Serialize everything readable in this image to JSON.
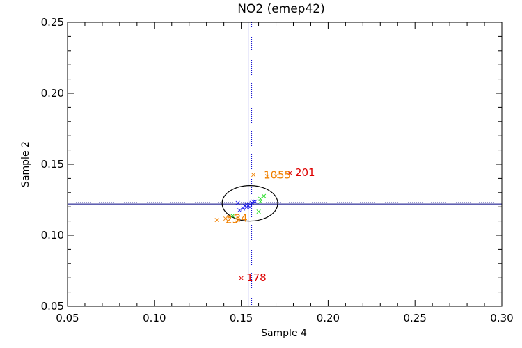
{
  "chart_data": {
    "type": "scatter",
    "title": "NO2 (emep42)",
    "xlabel": "Sample 4",
    "ylabel": "Sample 2",
    "xlim": [
      0.05,
      0.3
    ],
    "ylim": [
      0.05,
      0.25
    ],
    "x_ticks": [
      "0.05",
      "0.10",
      "0.15",
      "0.20",
      "0.25",
      "0.30"
    ],
    "y_ticks": [
      "0.05",
      "0.10",
      "0.15",
      "0.20",
      "0.25"
    ],
    "grid": false,
    "marker": "x",
    "colors": {
      "blue": "#1a1aee",
      "green": "#22dd22",
      "orange": "#f08000",
      "red": "#dd0000",
      "reference_line": "#000080",
      "mean_line": "#0000cc"
    },
    "reference_lines": {
      "x_solid": 0.154,
      "x_dotted": 0.156,
      "y_solid": 0.122,
      "y_dotted": 0.123
    },
    "ellipse": {
      "cx": 0.155,
      "cy": 0.1225,
      "rx": 0.016,
      "ry": 0.0125
    },
    "series": [
      {
        "color": "blue",
        "points": [
          [
            0.148,
            0.123
          ],
          [
            0.149,
            0.118
          ],
          [
            0.151,
            0.119
          ],
          [
            0.152,
            0.121
          ],
          [
            0.153,
            0.122
          ],
          [
            0.154,
            0.121
          ],
          [
            0.155,
            0.122
          ],
          [
            0.156,
            0.123
          ],
          [
            0.157,
            0.124
          ],
          [
            0.158,
            0.124
          ],
          [
            0.155,
            0.12
          ],
          [
            0.153,
            0.12
          ]
        ]
      },
      {
        "color": "green",
        "points": [
          [
            0.161,
            0.126
          ],
          [
            0.163,
            0.128
          ],
          [
            0.161,
            0.124
          ],
          [
            0.16,
            0.117
          ],
          [
            0.145,
            0.114
          ]
        ]
      },
      {
        "color": "orange",
        "points": [
          [
            0.157,
            0.143
          ],
          [
            0.165,
            0.142
          ],
          [
            0.17,
            0.142
          ],
          [
            0.136,
            0.111
          ],
          [
            0.141,
            0.112
          ],
          [
            0.143,
            0.113
          ],
          [
            0.148,
            0.111
          ]
        ]
      },
      {
        "color": "red",
        "points": [
          [
            0.178,
            0.144
          ],
          [
            0.15,
            0.07
          ]
        ]
      }
    ],
    "point_labels": [
      {
        "text": "201",
        "x": 0.181,
        "y": 0.144,
        "color": "red"
      },
      {
        "text": "178",
        "x": 0.153,
        "y": 0.07,
        "color": "red"
      },
      {
        "text": "10",
        "x": 0.163,
        "y": 0.1425,
        "color": "orange"
      },
      {
        "text": "55",
        "x": 0.171,
        "y": 0.1425,
        "color": "orange"
      },
      {
        "text": "23",
        "x": 0.141,
        "y": 0.111,
        "color": "orange"
      },
      {
        "text": "34",
        "x": 0.146,
        "y": 0.112,
        "color": "orange"
      }
    ]
  }
}
